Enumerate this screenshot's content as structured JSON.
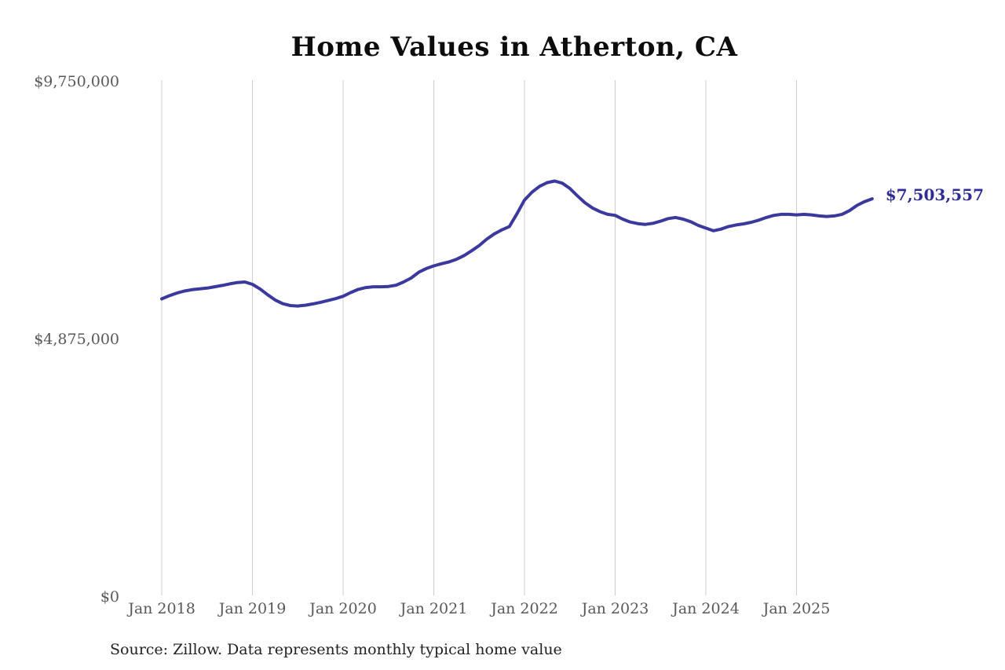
{
  "chart_data": {
    "type": "line",
    "title": "Home Values in Atherton, CA",
    "source_note": "Source: Zillow. Data represents monthly typical home value",
    "end_label": "$7,503,557",
    "final_value": 7503557,
    "x_start": "Jan 2018",
    "x_interval": "monthly",
    "x_tick_labels": [
      "Jan 2018",
      "Jan 2019",
      "Jan 2020",
      "Jan 2021",
      "Jan 2022",
      "Jan 2023",
      "Jan 2024",
      "Jan 2025"
    ],
    "y_ticks": [
      {
        "label": "$0",
        "value": 0
      },
      {
        "label": "$4,875,000",
        "value": 4875000
      },
      {
        "label": "$9,750,000",
        "value": 9750000
      }
    ],
    "ylim": [
      0,
      9750000
    ],
    "grid": "vertical-only",
    "legend": "none",
    "line_color": "#3a399e",
    "end_label_color": "#2e2d96",
    "axis_label_color": "#585858",
    "grid_color": "#cccccc",
    "values": [
      5610000,
      5670000,
      5720000,
      5760000,
      5785000,
      5800000,
      5815000,
      5840000,
      5865000,
      5895000,
      5920000,
      5930000,
      5885000,
      5800000,
      5690000,
      5590000,
      5520000,
      5485000,
      5475000,
      5490000,
      5515000,
      5545000,
      5580000,
      5615000,
      5660000,
      5730000,
      5790000,
      5825000,
      5840000,
      5840000,
      5845000,
      5870000,
      5930000,
      6005000,
      6115000,
      6185000,
      6235000,
      6275000,
      6310000,
      6360000,
      6430000,
      6520000,
      6620000,
      6740000,
      6840000,
      6915000,
      6980000,
      7220000,
      7480000,
      7630000,
      7740000,
      7810000,
      7840000,
      7800000,
      7700000,
      7560000,
      7430000,
      7330000,
      7260000,
      7210000,
      7190000,
      7120000,
      7065000,
      7035000,
      7020000,
      7040000,
      7080000,
      7130000,
      7150000,
      7120000,
      7070000,
      7000000,
      6950000,
      6900000,
      6930000,
      6980000,
      7010000,
      7030000,
      7060000,
      7100000,
      7150000,
      7190000,
      7210000,
      7210000,
      7200000,
      7210000,
      7200000,
      7180000,
      7170000,
      7180000,
      7210000,
      7280000,
      7380000,
      7450000,
      7503557
    ]
  }
}
